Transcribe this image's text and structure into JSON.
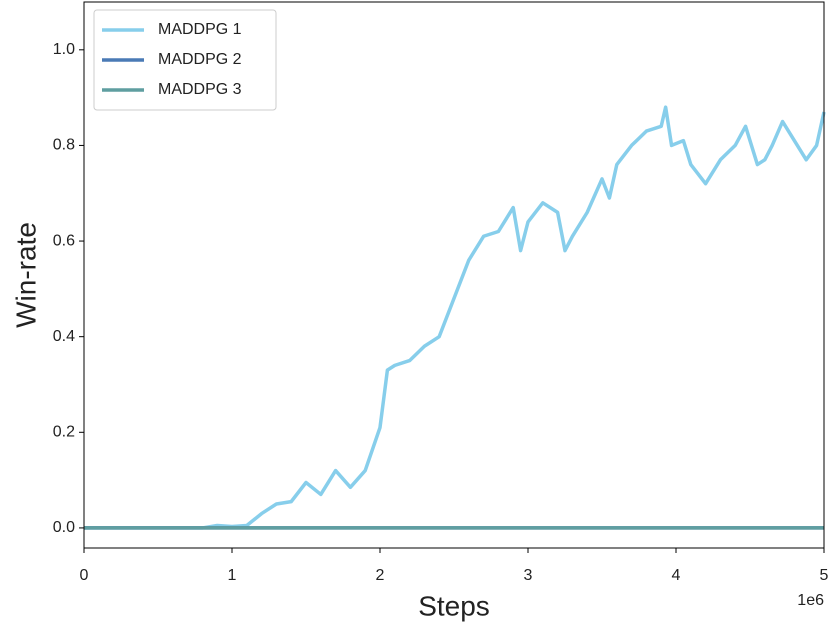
{
  "chart_data": {
    "type": "line",
    "x_label": "Steps",
    "y_label": "Win-rate",
    "x_offset_label": "1e6",
    "xlim": [
      0,
      5
    ],
    "ylim": [
      -0.042,
      1.1
    ],
    "xticks": [
      0,
      1,
      2,
      3,
      4,
      5
    ],
    "yticks": [
      {
        "value": 0,
        "label": "0.0"
      },
      {
        "value": 0.2,
        "label": "0.2"
      },
      {
        "value": 0.4,
        "label": "0.4"
      },
      {
        "value": 0.6,
        "label": "0.6"
      },
      {
        "value": 0.8,
        "label": "0.8"
      },
      {
        "value": 1,
        "label": "1.0"
      }
    ],
    "grid": false,
    "legend": "upper left",
    "series": [
      {
        "name": "MADDPG 1",
        "color": "#87ceeb",
        "x": [
          0,
          0.8,
          0.9,
          1.0,
          1.1,
          1.2,
          1.3,
          1.4,
          1.5,
          1.6,
          1.7,
          1.8,
          1.9,
          2.0,
          2.05,
          2.1,
          2.2,
          2.3,
          2.4,
          2.5,
          2.6,
          2.7,
          2.8,
          2.9,
          2.95,
          3.0,
          3.1,
          3.2,
          3.25,
          3.3,
          3.4,
          3.5,
          3.55,
          3.6,
          3.7,
          3.8,
          3.9,
          3.93,
          3.97,
          4.05,
          4.1,
          4.2,
          4.3,
          4.4,
          4.47,
          4.55,
          4.6,
          4.65,
          4.72,
          4.8,
          4.88,
          4.95,
          5.0
        ],
        "values": [
          0,
          0,
          0.005,
          0.003,
          0.005,
          0.03,
          0.05,
          0.055,
          0.095,
          0.07,
          0.12,
          0.085,
          0.12,
          0.21,
          0.33,
          0.34,
          0.35,
          0.38,
          0.4,
          0.48,
          0.56,
          0.61,
          0.62,
          0.67,
          0.58,
          0.64,
          0.68,
          0.66,
          0.58,
          0.61,
          0.66,
          0.73,
          0.69,
          0.76,
          0.8,
          0.83,
          0.84,
          0.88,
          0.8,
          0.81,
          0.76,
          0.72,
          0.77,
          0.8,
          0.84,
          0.76,
          0.77,
          0.8,
          0.85,
          0.81,
          0.77,
          0.8,
          0.87
        ]
      },
      {
        "name": "MADDPG 2",
        "color": "#4a7ab5",
        "x": [
          0,
          5
        ],
        "values": [
          0,
          0
        ]
      },
      {
        "name": "MADDPG 3",
        "color": "#5f9ea0",
        "x": [
          0,
          5
        ],
        "values": [
          0,
          0
        ]
      }
    ]
  }
}
